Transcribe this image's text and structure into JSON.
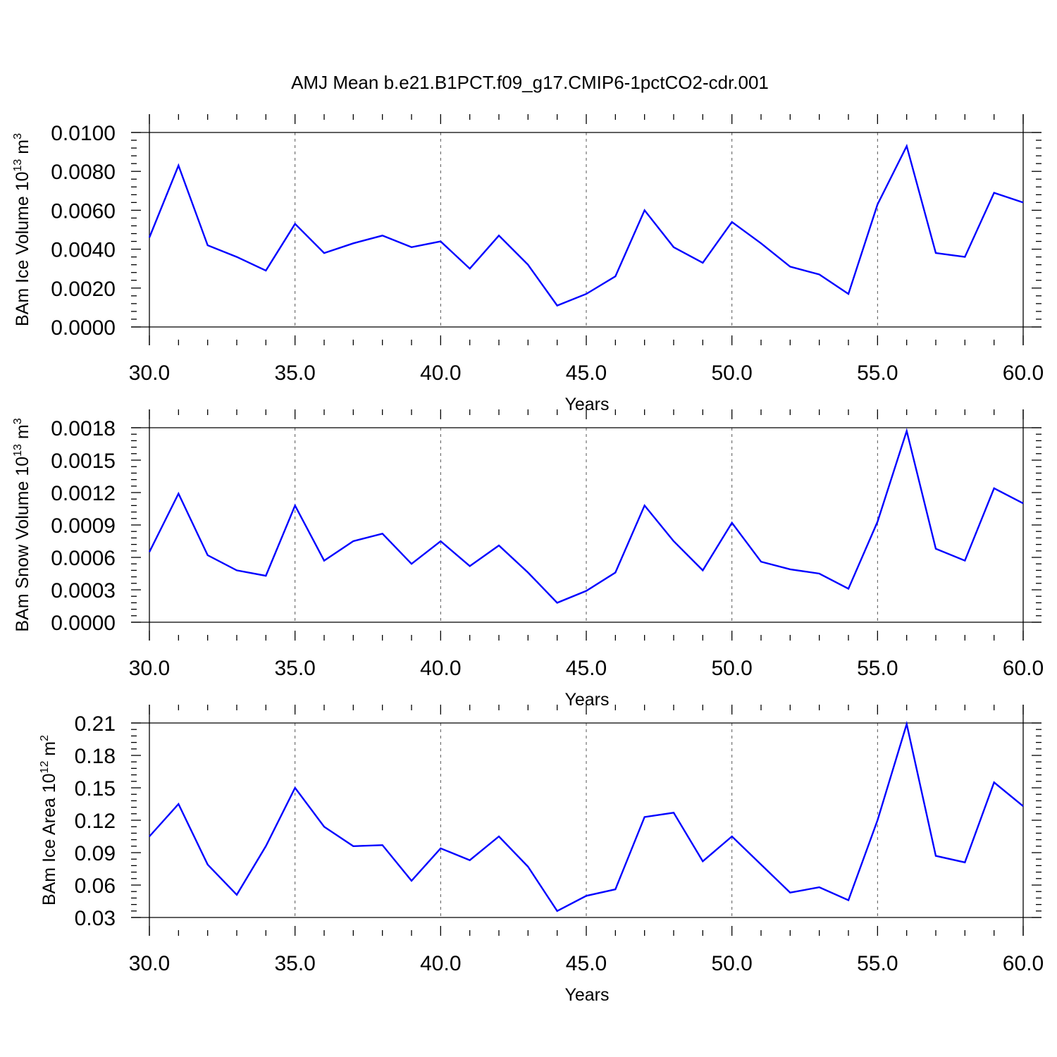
{
  "title": "AMJ Mean b.e21.B1PCT.f09_g17.CMIP6-1pctCO2-cdr.001",
  "line_color": "#0000ff",
  "chart_data": [
    {
      "type": "line",
      "ylabel": {
        "main": "BAm Ice Volume 10",
        "exp": "13",
        "unit": " m",
        "unit_exp": "3"
      },
      "xlabel": "Years",
      "xlim": [
        30,
        60
      ],
      "ylim": [
        0,
        0.01
      ],
      "x_ticks": [
        "30.0",
        "35.0",
        "40.0",
        "45.0",
        "50.0",
        "55.0",
        "60.0"
      ],
      "y_ticks": [
        "0.0000",
        "0.0020",
        "0.0040",
        "0.0060",
        "0.0080",
        "0.0100"
      ],
      "grid": "dashed vertical lines at major x ticks",
      "x": [
        30,
        31,
        32,
        33,
        34,
        35,
        36,
        37,
        38,
        39,
        40,
        41,
        42,
        43,
        44,
        45,
        46,
        47,
        48,
        49,
        50,
        51,
        52,
        53,
        54,
        55,
        56,
        57,
        58,
        59,
        60
      ],
      "values": [
        0.0046,
        0.0083,
        0.0042,
        0.0036,
        0.0029,
        0.0053,
        0.0038,
        0.0043,
        0.0047,
        0.0041,
        0.0044,
        0.003,
        0.0047,
        0.0032,
        0.0011,
        0.0017,
        0.0026,
        0.006,
        0.0041,
        0.0033,
        0.0054,
        0.0043,
        0.0031,
        0.0027,
        0.0017,
        0.0063,
        0.0093,
        0.0038,
        0.0036,
        0.0069,
        0.0064
      ]
    },
    {
      "type": "line",
      "ylabel": {
        "main": "BAm Snow Volume 10",
        "exp": "13",
        "unit": " m",
        "unit_exp": "3"
      },
      "xlabel": "Years",
      "xlim": [
        30,
        60
      ],
      "ylim": [
        0,
        0.0018
      ],
      "x_ticks": [
        "30.0",
        "35.0",
        "40.0",
        "45.0",
        "50.0",
        "55.0",
        "60.0"
      ],
      "y_ticks": [
        "0.0000",
        "0.0003",
        "0.0006",
        "0.0009",
        "0.0012",
        "0.0015",
        "0.0018"
      ],
      "grid": "dashed vertical lines at major x ticks",
      "x": [
        30,
        31,
        32,
        33,
        34,
        35,
        36,
        37,
        38,
        39,
        40,
        41,
        42,
        43,
        44,
        45,
        46,
        47,
        48,
        49,
        50,
        51,
        52,
        53,
        54,
        55,
        56,
        57,
        58,
        59,
        60
      ],
      "values": [
        0.00065,
        0.00119,
        0.00062,
        0.00048,
        0.00043,
        0.00108,
        0.00057,
        0.00075,
        0.00082,
        0.00054,
        0.00075,
        0.00052,
        0.00071,
        0.00046,
        0.00018,
        0.00029,
        0.00046,
        0.00108,
        0.00075,
        0.00048,
        0.00092,
        0.00056,
        0.00049,
        0.00045,
        0.00031,
        0.00093,
        0.00177,
        0.00068,
        0.00057,
        0.00124,
        0.0011
      ]
    },
    {
      "type": "line",
      "ylabel": {
        "main": "BAm Ice Area 10",
        "exp": "12",
        "unit": " m",
        "unit_exp": "2"
      },
      "xlabel": "Years",
      "xlim": [
        30,
        60
      ],
      "ylim": [
        0.03,
        0.21
      ],
      "x_ticks": [
        "30.0",
        "35.0",
        "40.0",
        "45.0",
        "50.0",
        "55.0",
        "60.0"
      ],
      "y_ticks": [
        "0.03",
        "0.06",
        "0.09",
        "0.12",
        "0.15",
        "0.18",
        "0.21"
      ],
      "grid": "dashed vertical lines at major x ticks",
      "x": [
        30,
        31,
        32,
        33,
        34,
        35,
        36,
        37,
        38,
        39,
        40,
        41,
        42,
        43,
        44,
        45,
        46,
        47,
        48,
        49,
        50,
        51,
        52,
        53,
        54,
        55,
        56,
        57,
        58,
        59,
        60
      ],
      "values": [
        0.105,
        0.135,
        0.079,
        0.051,
        0.096,
        0.15,
        0.114,
        0.096,
        0.097,
        0.064,
        0.094,
        0.083,
        0.105,
        0.077,
        0.036,
        0.05,
        0.056,
        0.123,
        0.127,
        0.082,
        0.105,
        0.079,
        0.053,
        0.058,
        0.046,
        0.12,
        0.209,
        0.087,
        0.081,
        0.155,
        0.133
      ]
    }
  ]
}
